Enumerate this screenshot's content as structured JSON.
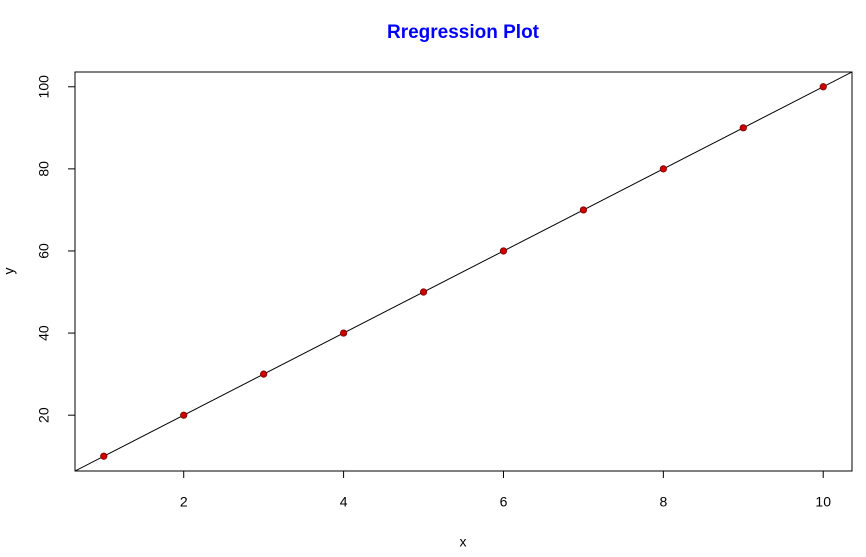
{
  "chart_data": {
    "type": "scatter",
    "title": "Rregression Plot",
    "title_color": "#0000ff",
    "x_label": "x",
    "y_label": "y",
    "x": [
      1,
      2,
      3,
      4,
      5,
      6,
      7,
      8,
      9,
      10
    ],
    "series": [
      {
        "values": [
          10,
          20,
          30,
          40,
          50,
          60,
          70,
          80,
          90,
          100
        ],
        "color": "#cc0000"
      }
    ],
    "regression_line": {
      "intercept": 0,
      "slope": 10,
      "color": "#000000"
    },
    "xlim": [
      0.64,
      10.36
    ],
    "ylim": [
      6.4,
      103.6
    ],
    "xticks": [
      2,
      4,
      6,
      8,
      10
    ],
    "yticks": [
      20,
      40,
      60,
      80,
      100
    ],
    "grid": false
  }
}
